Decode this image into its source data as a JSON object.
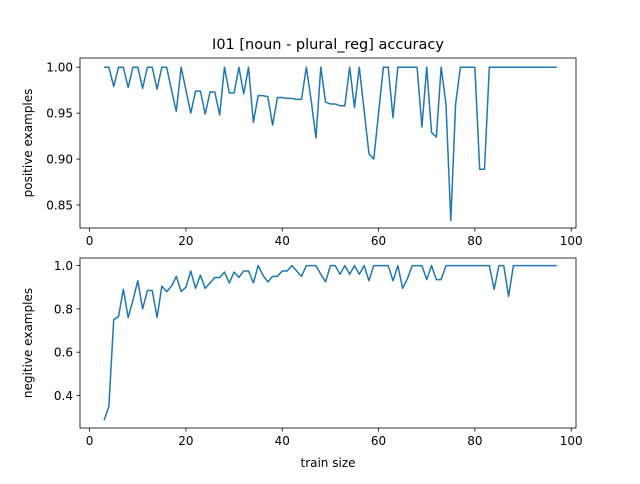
{
  "title": "I01 [noun - plural_reg] accuracy",
  "chart_data": [
    {
      "type": "line",
      "title": "I01 [noun - plural_reg] accuracy",
      "xlabel": "",
      "ylabel": "positive examples",
      "xlim": [
        -2,
        101
      ],
      "ylim": [
        0.825,
        1.01
      ],
      "xticks": [
        0,
        20,
        40,
        60,
        80,
        100
      ],
      "yticks": [
        0.85,
        0.9,
        0.95,
        1.0
      ],
      "ytick_labels": [
        "0.85",
        "0.90",
        "0.95",
        "1.00"
      ],
      "color": "#1f77b4",
      "x": [
        3,
        4,
        5,
        6,
        7,
        8,
        9,
        10,
        11,
        12,
        13,
        14,
        15,
        16,
        17,
        18,
        19,
        20,
        21,
        22,
        23,
        24,
        25,
        26,
        27,
        28,
        29,
        30,
        31,
        32,
        33,
        34,
        35,
        36,
        37,
        38,
        39,
        40,
        41,
        42,
        43,
        44,
        45,
        46,
        47,
        48,
        49,
        50,
        51,
        52,
        53,
        54,
        55,
        56,
        57,
        58,
        59,
        60,
        61,
        62,
        63,
        64,
        65,
        66,
        67,
        68,
        69,
        70,
        71,
        72,
        73,
        74,
        75,
        76,
        77,
        78,
        79,
        80,
        81,
        82,
        83,
        84,
        85,
        86,
        87,
        88,
        89,
        90,
        91,
        92,
        93,
        94,
        95,
        96,
        97
      ],
      "y": [
        1.0,
        1.0,
        0.979,
        1.0,
        1.0,
        0.978,
        1.0,
        1.0,
        0.977,
        1.0,
        1.0,
        0.976,
        1.0,
        1.0,
        0.975,
        0.952,
        1.0,
        0.975,
        0.95,
        0.974,
        0.974,
        0.949,
        0.973,
        0.973,
        0.948,
        1.0,
        0.972,
        0.972,
        1.0,
        0.971,
        1.0,
        0.94,
        0.969,
        0.969,
        0.968,
        0.937,
        0.967,
        0.967,
        0.966,
        0.966,
        0.965,
        0.965,
        1.0,
        0.964,
        0.923,
        1.0,
        0.962,
        0.96,
        0.96,
        0.958,
        0.958,
        1.0,
        0.956,
        1.0,
        0.953,
        0.906,
        0.9,
        0.95,
        1.0,
        1.0,
        0.945,
        1.0,
        1.0,
        1.0,
        1.0,
        1.0,
        0.935,
        1.0,
        0.929,
        0.924,
        1.0,
        0.96,
        0.833,
        0.96,
        1.0,
        1.0,
        1.0,
        1.0,
        0.889,
        0.889,
        1.0,
        1.0,
        1.0,
        1.0,
        1.0,
        1.0,
        1.0,
        1.0,
        1.0,
        1.0,
        1.0,
        1.0,
        1.0,
        1.0,
        1.0
      ]
    },
    {
      "type": "line",
      "title": "",
      "xlabel": "train size",
      "ylabel": "negitive examples",
      "xlim": [
        -2,
        101
      ],
      "ylim": [
        0.25,
        1.035
      ],
      "xticks": [
        0,
        20,
        40,
        60,
        80,
        100
      ],
      "yticks": [
        0.4,
        0.6,
        0.8,
        1.0
      ],
      "ytick_labels": [
        "0.4",
        "0.6",
        "0.8",
        "1.0"
      ],
      "color": "#1f77b4",
      "x": [
        3,
        4,
        5,
        6,
        7,
        8,
        9,
        10,
        11,
        12,
        13,
        14,
        15,
        16,
        17,
        18,
        19,
        20,
        21,
        22,
        23,
        24,
        25,
        26,
        27,
        28,
        29,
        30,
        31,
        32,
        33,
        34,
        35,
        36,
        37,
        38,
        39,
        40,
        41,
        42,
        43,
        44,
        45,
        46,
        47,
        48,
        49,
        50,
        51,
        52,
        53,
        54,
        55,
        56,
        57,
        58,
        59,
        60,
        61,
        62,
        63,
        64,
        65,
        66,
        67,
        68,
        69,
        70,
        71,
        72,
        73,
        74,
        75,
        76,
        77,
        78,
        79,
        80,
        81,
        82,
        83,
        84,
        85,
        86,
        87,
        88,
        89,
        90,
        91,
        92,
        93,
        94,
        95,
        96,
        97
      ],
      "y": [
        0.286,
        0.35,
        0.75,
        0.765,
        0.89,
        0.76,
        0.84,
        0.93,
        0.8,
        0.885,
        0.885,
        0.76,
        0.905,
        0.88,
        0.905,
        0.95,
        0.88,
        0.9,
        0.975,
        0.895,
        0.955,
        0.895,
        0.92,
        0.945,
        0.945,
        0.97,
        0.92,
        0.97,
        0.945,
        0.975,
        0.975,
        0.92,
        1.0,
        0.955,
        0.925,
        0.95,
        0.95,
        0.975,
        0.975,
        1.0,
        0.975,
        0.95,
        1.0,
        1.0,
        1.0,
        0.96,
        0.925,
        1.0,
        1.0,
        0.96,
        1.0,
        0.96,
        1.0,
        0.96,
        1.0,
        0.93,
        1.0,
        1.0,
        1.0,
        1.0,
        0.93,
        1.0,
        0.895,
        0.94,
        1.0,
        1.0,
        1.0,
        0.935,
        1.0,
        0.935,
        0.935,
        1.0,
        1.0,
        1.0,
        1.0,
        1.0,
        1.0,
        1.0,
        1.0,
        1.0,
        1.0,
        0.89,
        1.0,
        1.0,
        0.858,
        1.0,
        1.0,
        1.0,
        1.0,
        1.0,
        1.0,
        1.0,
        1.0,
        1.0,
        1.0
      ]
    }
  ]
}
